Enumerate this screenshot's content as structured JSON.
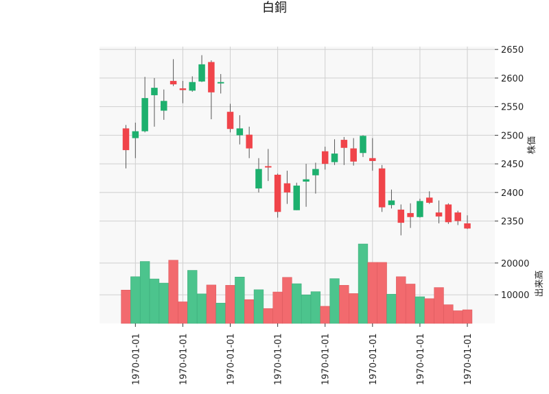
{
  "title": "白銅",
  "colors": {
    "up": "#1db06e",
    "down": "#f0444a",
    "up_volume": "#4cc48d",
    "down_volume": "#f26a6e",
    "wick": "#555555",
    "panel_bg": "#f8f8f8",
    "grid": "#cfcfcf"
  },
  "chart_data": [
    {
      "type": "candlestick",
      "panel": "price",
      "ylabel": "株価",
      "ylim": [
        2310,
        2655
      ],
      "yticks": [
        2350,
        2400,
        2450,
        2500,
        2550,
        2600,
        2650
      ],
      "x_tick_labels": [
        "1970-01-01",
        "1970-01-01",
        "1970-01-01",
        "1970-01-01",
        "1970-01-01",
        "1970-01-01",
        "1970-01-01",
        "1970-01-01"
      ],
      "x_tick_indices": [
        1,
        6,
        11,
        16,
        21,
        26,
        31,
        36
      ],
      "grid": true,
      "candles": [
        {
          "open": 2512,
          "high": 2518,
          "low": 2442,
          "close": 2474
        },
        {
          "open": 2495,
          "high": 2522,
          "low": 2460,
          "close": 2507
        },
        {
          "open": 2507,
          "high": 2602,
          "low": 2505,
          "close": 2565
        },
        {
          "open": 2570,
          "high": 2600,
          "low": 2515,
          "close": 2583
        },
        {
          "open": 2543,
          "high": 2580,
          "low": 2527,
          "close": 2560
        },
        {
          "open": 2595,
          "high": 2633,
          "low": 2586,
          "close": 2589
        },
        {
          "open": 2582,
          "high": 2595,
          "low": 2556,
          "close": 2579
        },
        {
          "open": 2578,
          "high": 2603,
          "low": 2576,
          "close": 2593
        },
        {
          "open": 2594,
          "high": 2640,
          "low": 2593,
          "close": 2624
        },
        {
          "open": 2628,
          "high": 2631,
          "low": 2528,
          "close": 2575
        },
        {
          "open": 2591,
          "high": 2607,
          "low": 2573,
          "close": 2593
        },
        {
          "open": 2541,
          "high": 2555,
          "low": 2505,
          "close": 2511
        },
        {
          "open": 2500,
          "high": 2535,
          "low": 2484,
          "close": 2512
        },
        {
          "open": 2501,
          "high": 2515,
          "low": 2460,
          "close": 2477
        },
        {
          "open": 2407,
          "high": 2460,
          "low": 2400,
          "close": 2441
        },
        {
          "open": 2446,
          "high": 2476,
          "low": 2420,
          "close": 2444
        },
        {
          "open": 2431,
          "high": 2433,
          "low": 2356,
          "close": 2366
        },
        {
          "open": 2416,
          "high": 2438,
          "low": 2380,
          "close": 2400
        },
        {
          "open": 2369,
          "high": 2417,
          "low": 2369,
          "close": 2412
        },
        {
          "open": 2419,
          "high": 2450,
          "low": 2375,
          "close": 2423
        },
        {
          "open": 2430,
          "high": 2452,
          "low": 2398,
          "close": 2441
        },
        {
          "open": 2472,
          "high": 2480,
          "low": 2440,
          "close": 2450
        },
        {
          "open": 2453,
          "high": 2493,
          "low": 2448,
          "close": 2468
        },
        {
          "open": 2492,
          "high": 2497,
          "low": 2448,
          "close": 2478
        },
        {
          "open": 2477,
          "high": 2495,
          "low": 2447,
          "close": 2454
        },
        {
          "open": 2469,
          "high": 2500,
          "low": 2462,
          "close": 2499
        },
        {
          "open": 2460,
          "high": 2495,
          "low": 2438,
          "close": 2455
        },
        {
          "open": 2442,
          "high": 2448,
          "low": 2366,
          "close": 2374
        },
        {
          "open": 2378,
          "high": 2405,
          "low": 2372,
          "close": 2386
        },
        {
          "open": 2370,
          "high": 2379,
          "low": 2325,
          "close": 2347
        },
        {
          "open": 2364,
          "high": 2381,
          "low": 2338,
          "close": 2357
        },
        {
          "open": 2357,
          "high": 2389,
          "low": 2356,
          "close": 2385
        },
        {
          "open": 2391,
          "high": 2402,
          "low": 2380,
          "close": 2382
        },
        {
          "open": 2365,
          "high": 2386,
          "low": 2346,
          "close": 2358
        },
        {
          "open": 2379,
          "high": 2381,
          "low": 2345,
          "close": 2348
        },
        {
          "open": 2365,
          "high": 2368,
          "low": 2343,
          "close": 2350
        },
        {
          "open": 2346,
          "high": 2360,
          "low": 2336,
          "close": 2337
        }
      ]
    },
    {
      "type": "bar",
      "panel": "volume",
      "ylabel": "出来高",
      "ylim": [
        1000,
        26000
      ],
      "yticks": [
        10000,
        20000
      ],
      "ytick_labels": [
        "10000",
        "20000"
      ],
      "grid": true,
      "values": [
        11500,
        15700,
        20500,
        15000,
        13700,
        20900,
        7800,
        17700,
        10300,
        13100,
        7400,
        13000,
        15600,
        8500,
        11600,
        5700,
        10900,
        15500,
        13500,
        10000,
        11000,
        6400,
        15100,
        13000,
        10400,
        26000,
        20200,
        20200,
        10200,
        15700,
        13400,
        9400,
        8800,
        12300,
        6900,
        5000,
        5300
      ]
    }
  ]
}
